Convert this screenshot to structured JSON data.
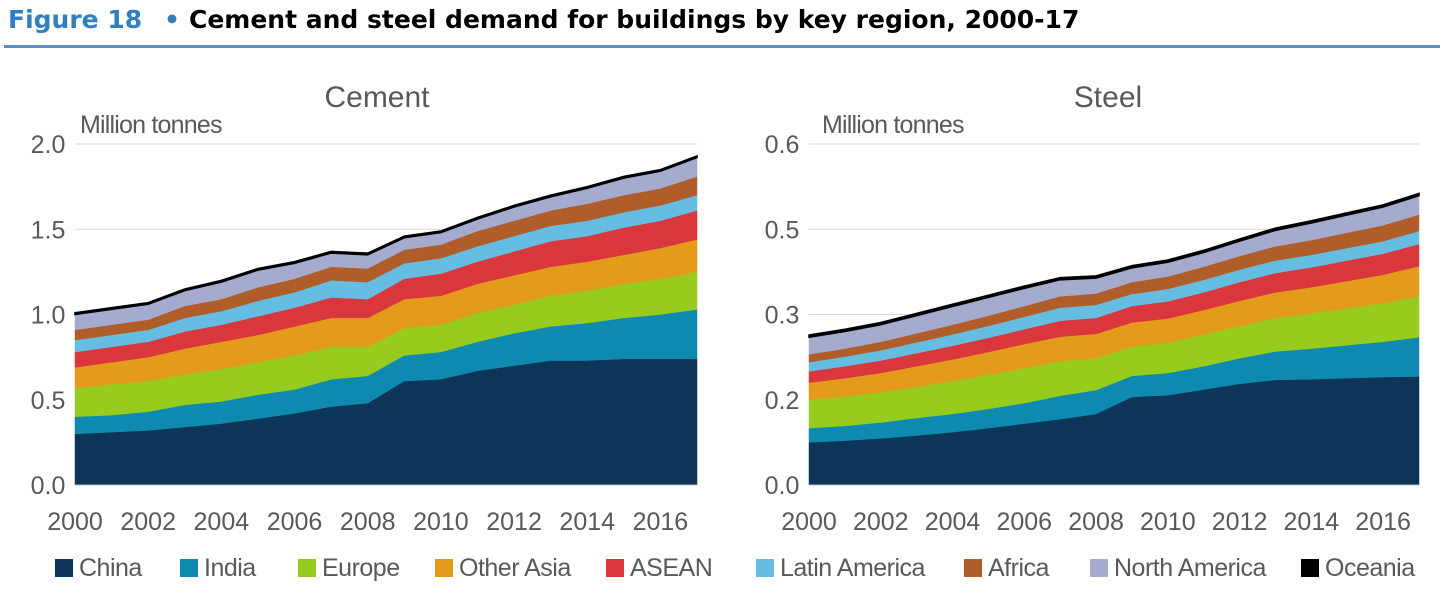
{
  "figure": {
    "label": "Figure 18",
    "bullet": "•",
    "title": "Cement and steel demand for buildings by key region, 2000-17"
  },
  "chart_data": [
    {
      "type": "area",
      "stacked": true,
      "title": "Cement",
      "ylabel": "Million tonnes",
      "ylim": [
        0,
        2.0
      ],
      "yticks": [
        "0.0",
        "0.5",
        "1.0",
        "1.5",
        "2.0"
      ],
      "yticks_values": [
        0,
        0.5,
        1.0,
        1.5,
        2.0
      ],
      "xticks": [
        "2000",
        "2002",
        "2004",
        "2006",
        "2008",
        "2010",
        "2012",
        "2014",
        "2016"
      ],
      "x": [
        2000,
        2001,
        2002,
        2003,
        2004,
        2005,
        2006,
        2007,
        2008,
        2009,
        2010,
        2011,
        2012,
        2013,
        2014,
        2015,
        2016,
        2017
      ],
      "series": [
        {
          "name": "China",
          "values": [
            0.3,
            0.31,
            0.32,
            0.34,
            0.36,
            0.39,
            0.42,
            0.46,
            0.48,
            0.61,
            0.62,
            0.67,
            0.7,
            0.73,
            0.73,
            0.74,
            0.74,
            0.74
          ]
        },
        {
          "name": "India",
          "values": [
            0.1,
            0.1,
            0.11,
            0.13,
            0.13,
            0.14,
            0.14,
            0.16,
            0.16,
            0.15,
            0.16,
            0.17,
            0.19,
            0.2,
            0.22,
            0.24,
            0.26,
            0.29
          ]
        },
        {
          "name": "Europe",
          "values": [
            0.17,
            0.18,
            0.18,
            0.18,
            0.19,
            0.19,
            0.2,
            0.19,
            0.17,
            0.16,
            0.16,
            0.17,
            0.17,
            0.18,
            0.19,
            0.2,
            0.21,
            0.22
          ]
        },
        {
          "name": "Other Asia",
          "values": [
            0.12,
            0.13,
            0.14,
            0.15,
            0.16,
            0.16,
            0.17,
            0.17,
            0.17,
            0.17,
            0.17,
            0.17,
            0.17,
            0.17,
            0.17,
            0.17,
            0.18,
            0.19
          ]
        },
        {
          "name": "ASEAN",
          "values": [
            0.09,
            0.09,
            0.09,
            0.1,
            0.1,
            0.11,
            0.11,
            0.12,
            0.11,
            0.12,
            0.13,
            0.13,
            0.14,
            0.15,
            0.15,
            0.16,
            0.16,
            0.17
          ]
        },
        {
          "name": "Latin America",
          "values": [
            0.07,
            0.07,
            0.07,
            0.08,
            0.08,
            0.09,
            0.09,
            0.1,
            0.1,
            0.09,
            0.09,
            0.09,
            0.09,
            0.09,
            0.09,
            0.09,
            0.09,
            0.09
          ]
        },
        {
          "name": "Africa",
          "values": [
            0.06,
            0.06,
            0.06,
            0.07,
            0.07,
            0.08,
            0.08,
            0.08,
            0.08,
            0.08,
            0.08,
            0.09,
            0.09,
            0.09,
            0.1,
            0.1,
            0.1,
            0.11
          ]
        },
        {
          "name": "North America",
          "values": [
            0.09,
            0.09,
            0.09,
            0.09,
            0.1,
            0.1,
            0.09,
            0.08,
            0.08,
            0.07,
            0.07,
            0.07,
            0.08,
            0.08,
            0.09,
            0.1,
            0.1,
            0.11
          ]
        },
        {
          "name": "Oceania",
          "values": [
            0.01,
            0.01,
            0.01,
            0.01,
            0.01,
            0.01,
            0.01,
            0.01,
            0.01,
            0.01,
            0.01,
            0.01,
            0.01,
            0.01,
            0.01,
            0.01,
            0.01,
            0.01
          ]
        }
      ]
    },
    {
      "type": "area",
      "stacked": true,
      "title": "Steel",
      "ylabel": "Million tonnes",
      "ylim": [
        0,
        0.6
      ],
      "yticks": [
        "0.0",
        "0.2",
        "0.3",
        "0.5",
        "0.6"
      ],
      "yticks_values": [
        0,
        0.15,
        0.3,
        0.45,
        0.6
      ],
      "xticks": [
        "2000",
        "2002",
        "2004",
        "2006",
        "2008",
        "2010",
        "2012",
        "2014",
        "2016"
      ],
      "x": [
        2000,
        2001,
        2002,
        2003,
        2004,
        2005,
        2006,
        2007,
        2008,
        2009,
        2010,
        2011,
        2012,
        2013,
        2014,
        2015,
        2016,
        2017
      ],
      "series": [
        {
          "name": "China",
          "values": [
            0.075,
            0.078,
            0.082,
            0.087,
            0.093,
            0.1,
            0.108,
            0.116,
            0.125,
            0.155,
            0.158,
            0.168,
            0.178,
            0.185,
            0.186,
            0.188,
            0.19,
            0.191
          ]
        },
        {
          "name": "India",
          "values": [
            0.025,
            0.026,
            0.028,
            0.031,
            0.032,
            0.034,
            0.036,
            0.041,
            0.042,
            0.037,
            0.039,
            0.041,
            0.045,
            0.05,
            0.054,
            0.058,
            0.062,
            0.069
          ]
        },
        {
          "name": "Europe",
          "values": [
            0.05,
            0.052,
            0.053,
            0.055,
            0.058,
            0.06,
            0.062,
            0.061,
            0.056,
            0.052,
            0.053,
            0.056,
            0.057,
            0.059,
            0.062,
            0.065,
            0.068,
            0.072
          ]
        },
        {
          "name": "Other Asia",
          "values": [
            0.03,
            0.032,
            0.034,
            0.036,
            0.038,
            0.04,
            0.042,
            0.043,
            0.043,
            0.042,
            0.043,
            0.043,
            0.044,
            0.045,
            0.046,
            0.048,
            0.05,
            0.053
          ]
        },
        {
          "name": "ASEAN",
          "values": [
            0.02,
            0.021,
            0.022,
            0.023,
            0.024,
            0.025,
            0.026,
            0.028,
            0.028,
            0.029,
            0.03,
            0.031,
            0.033,
            0.034,
            0.035,
            0.036,
            0.037,
            0.039
          ]
        },
        {
          "name": "Latin America",
          "values": [
            0.016,
            0.017,
            0.018,
            0.019,
            0.02,
            0.021,
            0.022,
            0.023,
            0.023,
            0.021,
            0.022,
            0.022,
            0.022,
            0.022,
            0.022,
            0.022,
            0.022,
            0.023
          ]
        },
        {
          "name": "Africa",
          "values": [
            0.014,
            0.014,
            0.015,
            0.016,
            0.017,
            0.018,
            0.019,
            0.02,
            0.02,
            0.021,
            0.022,
            0.023,
            0.024,
            0.025,
            0.026,
            0.027,
            0.028,
            0.029
          ]
        },
        {
          "name": "North America",
          "values": [
            0.03,
            0.03,
            0.03,
            0.031,
            0.032,
            0.032,
            0.031,
            0.029,
            0.027,
            0.025,
            0.025,
            0.025,
            0.026,
            0.028,
            0.03,
            0.031,
            0.032,
            0.033
          ]
        },
        {
          "name": "Oceania",
          "values": [
            0.004,
            0.004,
            0.004,
            0.004,
            0.004,
            0.004,
            0.004,
            0.004,
            0.004,
            0.004,
            0.004,
            0.004,
            0.004,
            0.004,
            0.004,
            0.004,
            0.004,
            0.004
          ]
        }
      ]
    }
  ],
  "colors": {
    "China": "#0c3557",
    "India": "#0e8ab0",
    "Europe": "#97cb1e",
    "Other Asia": "#e49b1c",
    "ASEAN": "#d9373b",
    "Latin America": "#66bde2",
    "Africa": "#b05e29",
    "North America": "#a5abcf",
    "Oceania": "#000000"
  },
  "legend": [
    "China",
    "India",
    "Europe",
    "Other Asia",
    "ASEAN",
    "Latin America",
    "Africa",
    "North America",
    "Oceania"
  ]
}
